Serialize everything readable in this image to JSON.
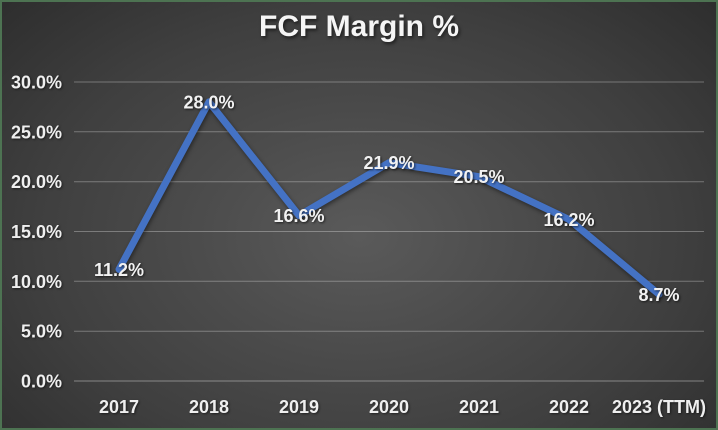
{
  "chart_data": {
    "type": "line",
    "title": "FCF Margin %",
    "categories": [
      "2017",
      "2018",
      "2019",
      "2020",
      "2021",
      "2022",
      "2023 (TTM)"
    ],
    "series": [
      {
        "name": "FCF Margin %",
        "values": [
          11.2,
          28.0,
          16.6,
          21.9,
          20.5,
          16.2,
          8.7
        ]
      }
    ],
    "data_labels": [
      "11.2%",
      "28.0%",
      "16.6%",
      "21.9%",
      "20.5%",
      "16.2%",
      "8.7%"
    ],
    "xlabel": "",
    "ylabel": "",
    "ylim": [
      0,
      30
    ],
    "y_ticks": {
      "values": [
        0,
        5,
        10,
        15,
        20,
        25,
        30
      ],
      "labels": [
        "0.0%",
        "5.0%",
        "10.0%",
        "15.0%",
        "20.0%",
        "25.0%",
        "30.0%"
      ]
    },
    "grid": true,
    "legend": "none",
    "colors": {
      "line": "#4472C4",
      "label_text": "#f2f2f2",
      "gridline": "rgba(255,255,255,0.30)",
      "background_center": "#5a5a5a",
      "background_edge": "#252525",
      "border": "#4d7352"
    }
  }
}
